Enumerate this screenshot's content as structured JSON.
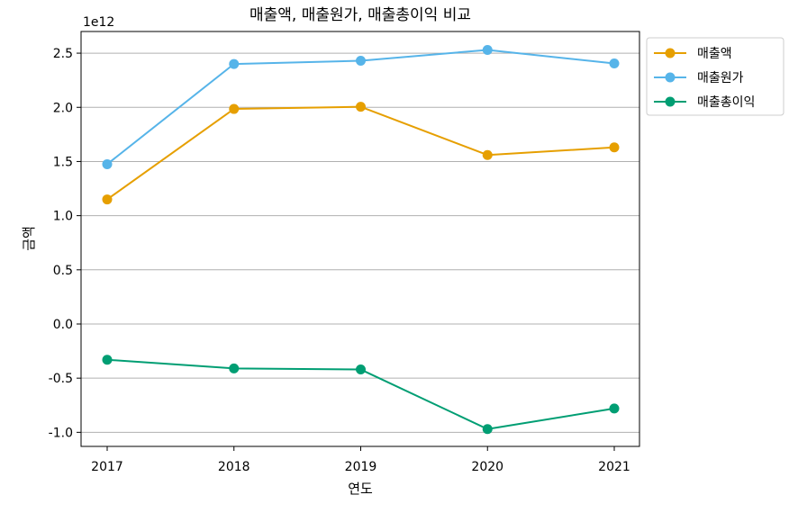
{
  "chart_data": {
    "type": "line",
    "title": "매출액, 매출원가, 매출총이익 비교",
    "xlabel": "연도",
    "ylabel": "금액",
    "y_scale_label": "1e12",
    "categories": [
      "2017",
      "2018",
      "2019",
      "2020",
      "2021"
    ],
    "yticks": [
      "-1.0",
      "-0.5",
      "0.0",
      "0.5",
      "1.0",
      "1.5",
      "2.0",
      "2.5"
    ],
    "ylim": [
      -1.13,
      2.7
    ],
    "grid": "horizontal",
    "legend_position": "outside-top-right",
    "series": [
      {
        "name": "매출액",
        "color": "#E69F00",
        "values": [
          1.15,
          1.985,
          2.005,
          1.56,
          1.63
        ]
      },
      {
        "name": "매출원가",
        "color": "#56B4E9",
        "values": [
          1.475,
          2.4,
          2.43,
          2.53,
          2.405
        ]
      },
      {
        "name": "매출총이익",
        "color": "#009E73",
        "values": [
          -0.33,
          -0.41,
          -0.42,
          -0.97,
          -0.78
        ]
      }
    ]
  }
}
